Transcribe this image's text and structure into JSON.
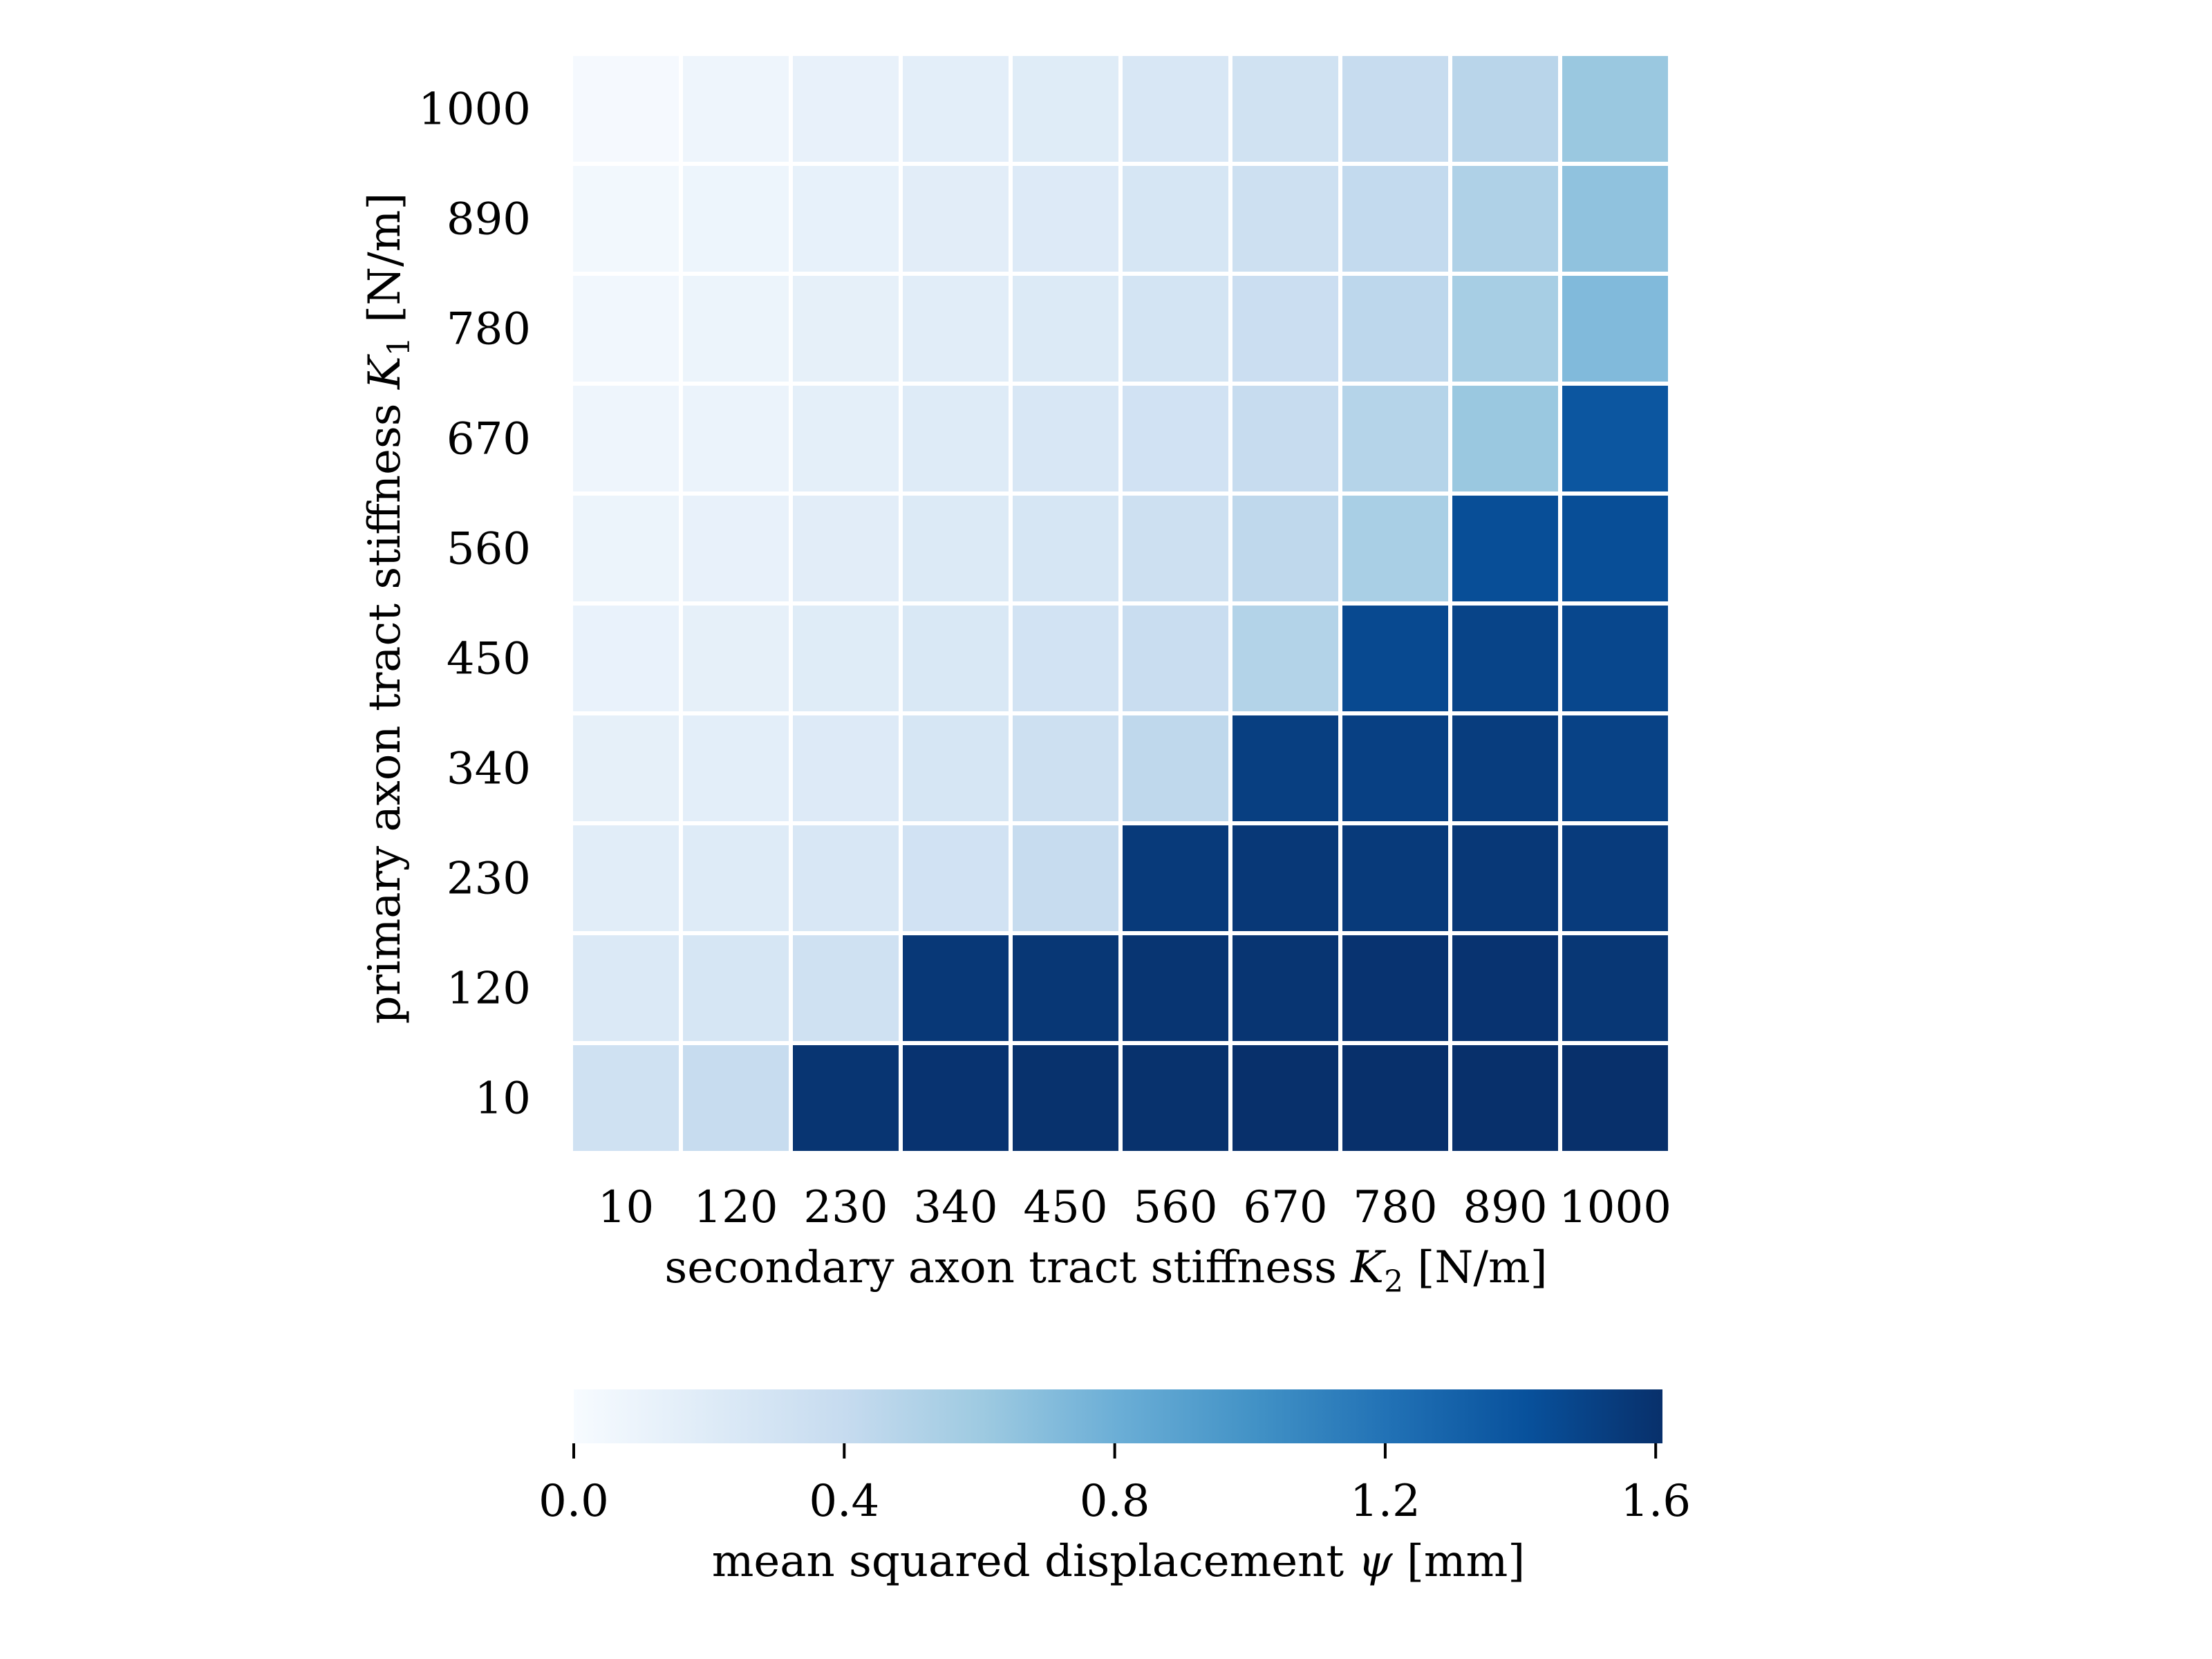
{
  "chart_data": {
    "type": "heatmap",
    "x": {
      "label_pre": "secondary axon tract stiffness ",
      "label_sym": "K",
      "label_sub": "2",
      "label_post": " [N/m]",
      "categories": [
        "10",
        "120",
        "230",
        "340",
        "450",
        "560",
        "670",
        "780",
        "890",
        "1000"
      ]
    },
    "y": {
      "label_pre": "primary axon tract stiffness ",
      "label_sym": "K",
      "label_sub": "1",
      "label_post": " [N/m]",
      "categories": [
        "1000",
        "890",
        "780",
        "670",
        "560",
        "450",
        "340",
        "230",
        "120",
        "10"
      ]
    },
    "values": [
      [
        0.02,
        0.07,
        0.12,
        0.16,
        0.19,
        0.25,
        0.32,
        0.39,
        0.47,
        0.62
      ],
      [
        0.04,
        0.08,
        0.13,
        0.17,
        0.21,
        0.27,
        0.34,
        0.42,
        0.52,
        0.66
      ],
      [
        0.05,
        0.09,
        0.14,
        0.18,
        0.22,
        0.29,
        0.36,
        0.45,
        0.56,
        0.72
      ],
      [
        0.07,
        0.1,
        0.15,
        0.2,
        0.25,
        0.31,
        0.39,
        0.49,
        0.62,
        1.38
      ],
      [
        0.09,
        0.12,
        0.17,
        0.22,
        0.27,
        0.34,
        0.44,
        0.55,
        1.43,
        1.43
      ],
      [
        0.11,
        0.14,
        0.19,
        0.24,
        0.3,
        0.38,
        0.5,
        1.46,
        1.49,
        1.47
      ],
      [
        0.14,
        0.16,
        0.21,
        0.27,
        0.34,
        0.44,
        1.52,
        1.51,
        1.53,
        1.5
      ],
      [
        0.18,
        0.2,
        0.25,
        0.31,
        0.39,
        1.55,
        1.56,
        1.55,
        1.56,
        1.54
      ],
      [
        0.23,
        0.27,
        0.33,
        1.56,
        1.57,
        1.58,
        1.58,
        1.59,
        1.59,
        1.57
      ],
      [
        0.33,
        0.39,
        1.58,
        1.59,
        1.6,
        1.6,
        1.61,
        1.62,
        1.62,
        1.61
      ]
    ],
    "colorbar": {
      "label_pre": "mean squared displacement ",
      "label_sym": "ψ",
      "label_post": " [mm]",
      "ticks": [
        "0.0",
        "0.4",
        "0.8",
        "1.2",
        "1.6"
      ],
      "tick_values": [
        0.0,
        0.4,
        0.8,
        1.2,
        1.6
      ],
      "range": [
        0.0,
        1.61
      ]
    },
    "colormap": "Blues",
    "grid": false,
    "legend": "bottom colorbar"
  }
}
